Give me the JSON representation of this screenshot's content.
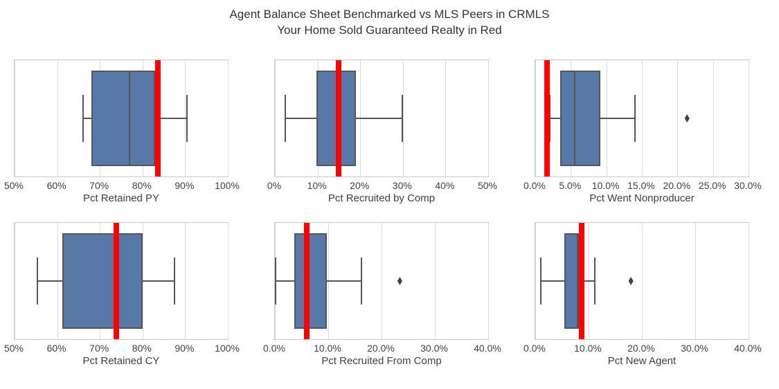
{
  "title": {
    "line1": "Agent Balance Sheet Benchmarked vs MLS Peers in CRMLS",
    "line2": "Your Home Sold Guaranteed Realty in Red"
  },
  "colors": {
    "box_fill": "#5878A8",
    "box_border": "#555555",
    "whisker": "#555555",
    "median": "#555555",
    "company_line": "#FF0000",
    "gridline": "#D9D9D9",
    "frame": "#C8C8C8",
    "text": "#3F3F3F",
    "outlier": "#3F3F3F",
    "title_text": "#333333"
  },
  "chart_data": [
    {
      "type": "boxplot",
      "orientation": "horizontal",
      "xlabel": "Pct Retained PY",
      "xlim": [
        50,
        100
      ],
      "ticks": [
        50,
        60,
        70,
        80,
        90,
        100
      ],
      "tick_labels": [
        "50%",
        "60%",
        "70%",
        "80%",
        "90%",
        "100%"
      ],
      "whisker_low": 66,
      "q1": 68,
      "median": 77,
      "q3": 83,
      "whisker_high": 90.5,
      "outliers": [],
      "company_value": 83.6
    },
    {
      "type": "boxplot",
      "orientation": "horizontal",
      "xlabel": "Pct Recruited by Comp",
      "xlim": [
        0,
        50
      ],
      "ticks": [
        0,
        10,
        20,
        30,
        40,
        50
      ],
      "tick_labels": [
        "0%",
        "10%",
        "20%",
        "30%",
        "40%",
        "50%"
      ],
      "whisker_low": 2.5,
      "q1": 9.7,
      "median": 14.8,
      "q3": 19,
      "whisker_high": 29.8,
      "outliers": [],
      "company_value": 15
    },
    {
      "type": "boxplot",
      "orientation": "horizontal",
      "xlabel": "Pct Went Nonproducer",
      "xlim": [
        0,
        30
      ],
      "ticks": [
        0,
        5,
        10,
        15,
        20,
        25,
        30
      ],
      "tick_labels": [
        "0.0%",
        "5.0%",
        "10.0%",
        "15.0%",
        "20.0%",
        "25.0%",
        "30.0%"
      ],
      "whisker_low": 2.0,
      "q1": 3.5,
      "median": 5.6,
      "q3": 9.2,
      "whisker_high": 14.0,
      "outliers": [
        21.4
      ],
      "company_value": 1.7
    },
    {
      "type": "boxplot",
      "orientation": "horizontal",
      "xlabel": "Pct Retained CY",
      "xlim": [
        50,
        100
      ],
      "ticks": [
        50,
        60,
        70,
        80,
        90,
        100
      ],
      "tick_labels": [
        "50%",
        "60%",
        "70%",
        "80%",
        "90%",
        "100%"
      ],
      "whisker_low": 55.3,
      "q1": 61.2,
      "median": 74,
      "q3": 80,
      "whisker_high": 87.5,
      "outliers": [],
      "company_value": 73.8
    },
    {
      "type": "boxplot",
      "orientation": "horizontal",
      "xlabel": "Pct Recruited From Comp",
      "xlim": [
        0,
        40
      ],
      "ticks": [
        0,
        10,
        20,
        30,
        40
      ],
      "tick_labels": [
        "0.0%",
        "10.0%",
        "20.0%",
        "30.0%",
        "40.0%"
      ],
      "whisker_low": 0.1,
      "q1": 3.7,
      "median": 6.0,
      "q3": 9.7,
      "whisker_high": 16.2,
      "outliers": [
        23.5
      ],
      "company_value": 6.0
    },
    {
      "type": "boxplot",
      "orientation": "horizontal",
      "xlabel": "Pct New Agent",
      "xlim": [
        0,
        40
      ],
      "ticks": [
        0,
        10,
        20,
        30,
        40
      ],
      "tick_labels": [
        "0.0%",
        "10.0%",
        "20.0%",
        "30.0%",
        "40.0%"
      ],
      "whisker_low": 1.1,
      "q1": 5.4,
      "median": 8.0,
      "q3": 8.0,
      "whisker_high": 11.2,
      "outliers": [
        18.0
      ],
      "company_value": 8.7
    }
  ]
}
